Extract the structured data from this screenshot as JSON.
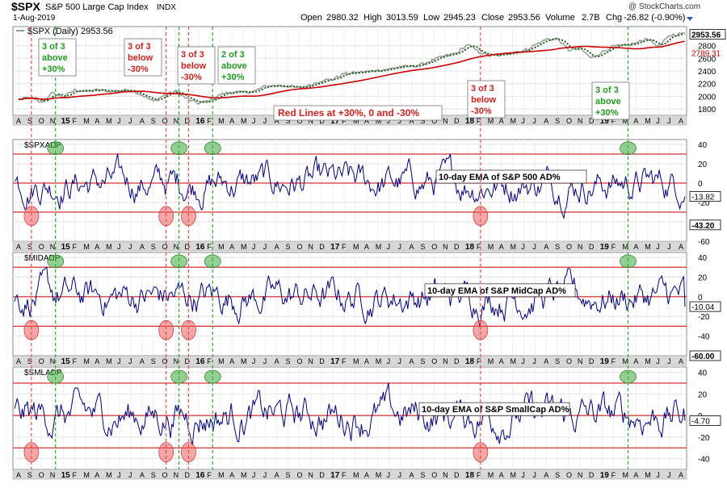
{
  "header": {
    "symbol": "$SPX",
    "name": "S&P 500 Large Cap Index",
    "exchange": "INDX",
    "date": "1-Aug-2019",
    "open_label": "Open",
    "open": "2980.32",
    "high_label": "High",
    "high": "3013.59",
    "low_label": "Low",
    "low": "2945.23",
    "close_label": "Close",
    "close": "2953.56",
    "volume_label": "Volume",
    "volume": "2.7B",
    "chg_label": "Chg",
    "chg": "-26.82 (-0.90%)",
    "watermark": "@ StockCharts.com"
  },
  "colors": {
    "green": "#1e9b1e",
    "red": "#d21e1e",
    "navy": "#000080",
    "price": "#9a9a9a",
    "ma_green": "#1f5f1f",
    "ma_red": "#cc0000",
    "bg": "#ffffff",
    "axis_bg": "#d8d8d8"
  },
  "x_axis": {
    "labels": [
      "A",
      "S",
      "O",
      "N",
      "15",
      "F",
      "M",
      "A",
      "M",
      "J",
      "J",
      "A",
      "S",
      "O",
      "N",
      "D",
      "16",
      "F",
      "M",
      "A",
      "M",
      "J",
      "J",
      "A",
      "S",
      "O",
      "N",
      "D",
      "17",
      "F",
      "M",
      "A",
      "M",
      "J",
      "J",
      "A",
      "S",
      "O",
      "N",
      "D",
      "18",
      "F",
      "M",
      "A",
      "M",
      "J",
      "J",
      "A",
      "S",
      "O",
      "N",
      "D",
      "19",
      "F",
      "M",
      "A",
      "M",
      "J",
      "J",
      "A"
    ],
    "year_labels": [
      "15",
      "16",
      "17",
      "18",
      "19"
    ]
  },
  "annotations": {
    "price_boxes": [
      {
        "id": "a1",
        "lines": [
          "3 of 3",
          "above",
          "+30%"
        ],
        "color": "green"
      },
      {
        "id": "a2",
        "lines": [
          "3 of 3",
          "below",
          "-30%"
        ],
        "color": "red"
      },
      {
        "id": "a3",
        "lines": [
          "3 of 3",
          "below",
          "-30%"
        ],
        "color": "red"
      },
      {
        "id": "a4",
        "lines": [
          "2 of 3",
          "above",
          "+30%"
        ],
        "color": "green"
      },
      {
        "id": "a5",
        "lines": [
          "3 of 3",
          "below",
          "-30%"
        ],
        "color": "red"
      },
      {
        "id": "a6",
        "lines": [
          "3 of 3",
          "above",
          "+30%"
        ],
        "color": "green"
      }
    ],
    "red_lines_note": "Red Lines at +30%, 0 and -30%",
    "green_verticals_month_index": [
      3,
      14,
      17,
      54
    ],
    "red_verticals_month_index": [
      1,
      13,
      15,
      41
    ]
  },
  "chart_data": [
    {
      "type": "line",
      "panel": "price",
      "title": "$SPX (Daily) 2953.56",
      "series": [
        {
          "name": "$SPX (Daily)"
        }
      ],
      "last_value_label": "2953.56",
      "ma_value_label": "2789.31",
      "monthly_values": [
        1950,
        1980,
        1900,
        2050,
        1990,
        2100,
        2080,
        2100,
        2080,
        2090,
        2100,
        2020,
        1920,
        2020,
        2080,
        1960,
        1890,
        1930,
        2030,
        2070,
        2060,
        2080,
        2160,
        2170,
        2160,
        2130,
        2180,
        2250,
        2270,
        2360,
        2370,
        2390,
        2410,
        2430,
        2470,
        2470,
        2510,
        2580,
        2640,
        2680,
        2820,
        2700,
        2640,
        2650,
        2700,
        2720,
        2810,
        2900,
        2910,
        2730,
        2760,
        2600,
        2700,
        2790,
        2800,
        2840,
        2920,
        2780,
        2960,
        2990,
        2954
      ],
      "ylim": [
        1700,
        3100
      ],
      "yticks": [
        1800,
        2000,
        2200,
        2400,
        2600,
        2800
      ],
      "grid": true
    },
    {
      "type": "line",
      "panel": "breadth-1",
      "title": "$SPXADP",
      "series": [
        {
          "name": "10-day EMA of S&P 500 AD%"
        }
      ],
      "last_value_label": "-13.82",
      "min_value_label": "-43.20",
      "ylim": [
        -60,
        45
      ],
      "yticks": [
        -60,
        -40,
        -20,
        0,
        20,
        40
      ],
      "reference_lines": [
        30,
        0,
        -30
      ]
    },
    {
      "type": "line",
      "panel": "breadth-2",
      "title": "$MIDADP",
      "series": [
        {
          "name": "10-day EMA of S&P MidCap AD%"
        }
      ],
      "last_value_label": "-10.04",
      "min_value_label": "-60.00",
      "ylim": [
        -60,
        45
      ],
      "yticks": [
        -40,
        -20,
        0,
        20,
        40
      ],
      "reference_lines": [
        30,
        0,
        -30
      ]
    },
    {
      "type": "line",
      "panel": "breadth-3",
      "title": "$SMLADP",
      "series": [
        {
          "name": "10-day EMA of S&P SmallCap AD%"
        }
      ],
      "last_value_label": "-4.70",
      "ylim": [
        -50,
        45
      ],
      "yticks": [
        -40,
        -20,
        0,
        20,
        40
      ],
      "reference_lines": [
        30,
        0,
        -30
      ]
    }
  ]
}
